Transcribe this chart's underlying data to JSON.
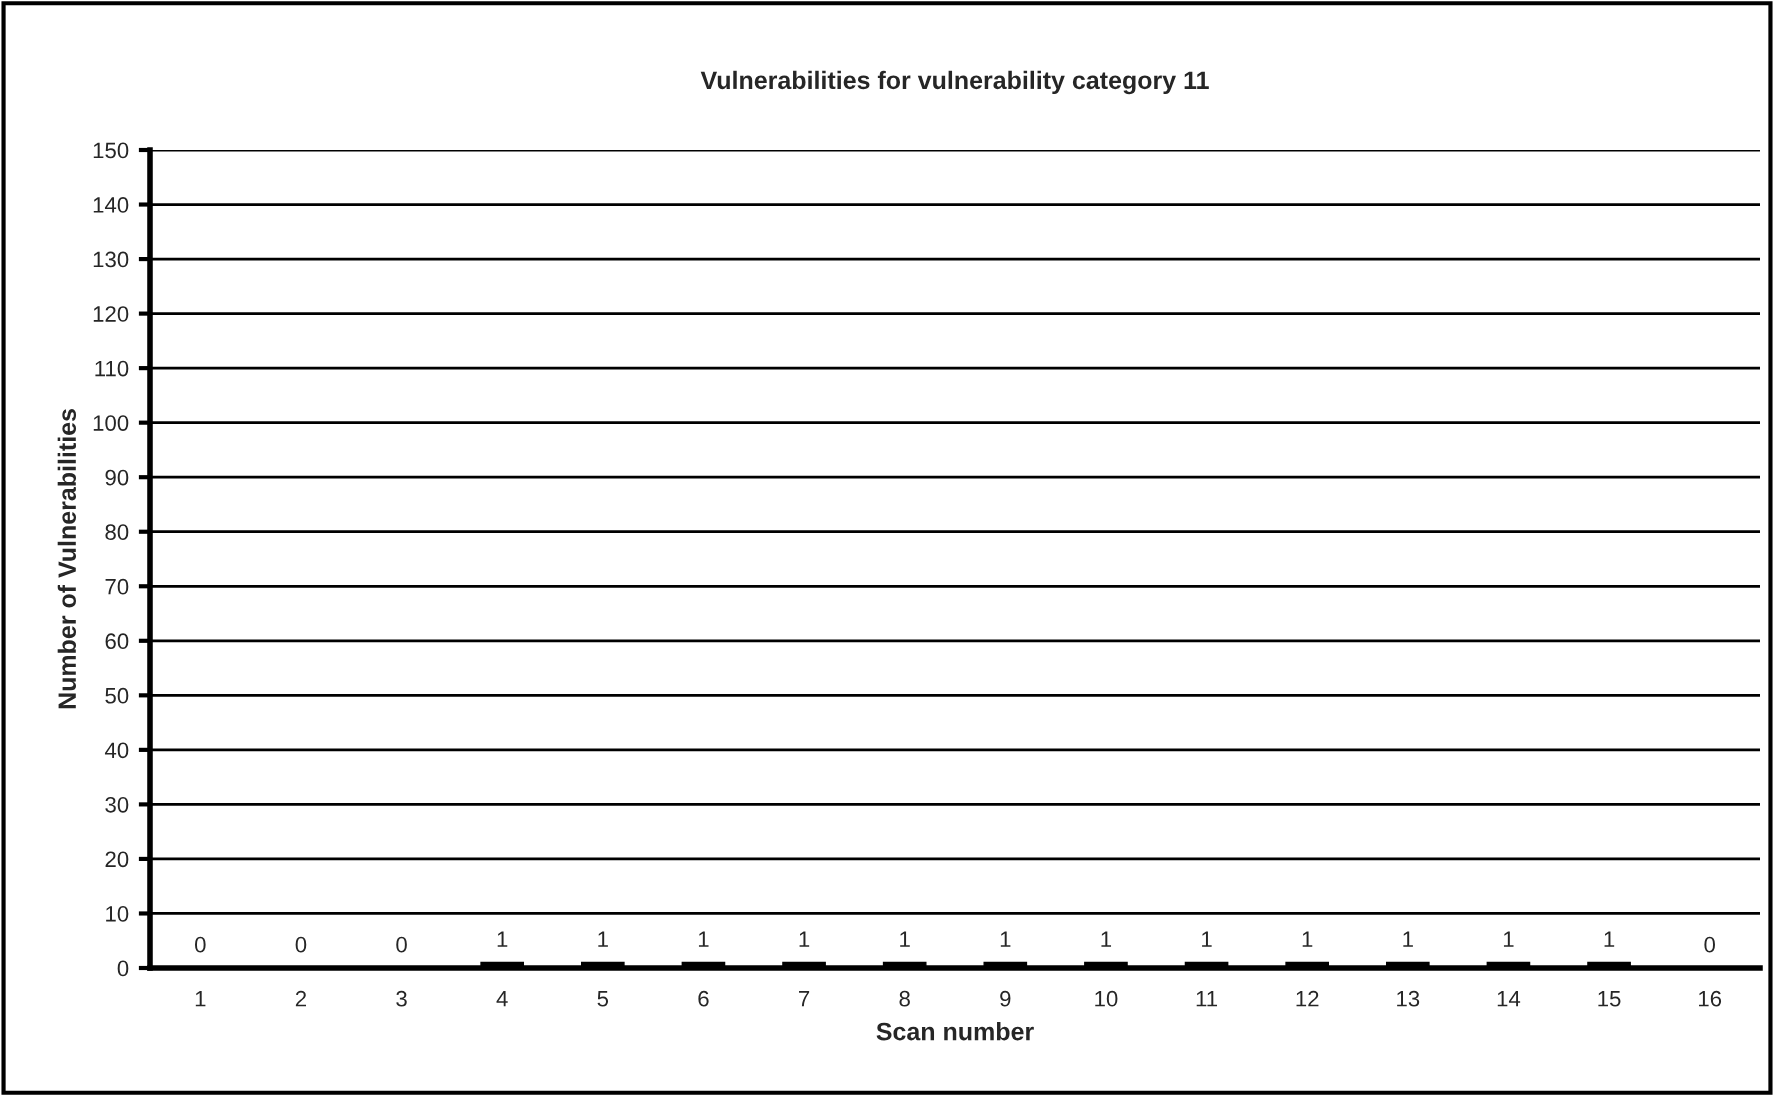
{
  "chart_data": {
    "type": "bar",
    "title": "Vulnerabilities for vulnerability category 11",
    "xlabel": "Scan number",
    "ylabel": "Number of Vulnerabilities",
    "categories": [
      "1",
      "2",
      "3",
      "4",
      "5",
      "6",
      "7",
      "8",
      "9",
      "10",
      "11",
      "12",
      "13",
      "14",
      "15",
      "16"
    ],
    "values": [
      0,
      0,
      0,
      1,
      1,
      1,
      1,
      1,
      1,
      1,
      1,
      1,
      1,
      1,
      1,
      0
    ],
    "color": "#000000",
    "ylim": [
      0,
      150
    ],
    "yticks": [
      0,
      10,
      20,
      30,
      40,
      50,
      60,
      70,
      80,
      90,
      100,
      110,
      120,
      130,
      140,
      150
    ],
    "grid": "y",
    "data_labels": true
  }
}
